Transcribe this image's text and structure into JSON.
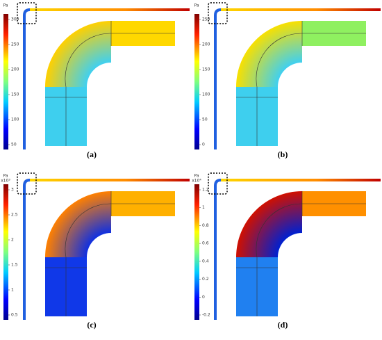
{
  "panels": [
    {
      "label": "(a)",
      "unit": "Pa",
      "ticks": [
        "300",
        "250",
        "200",
        "150",
        "100",
        "50"
      ]
    },
    {
      "label": "(b)",
      "unit": "Pa",
      "ticks": [
        "250",
        "200",
        "150",
        "100",
        "50",
        "0"
      ]
    },
    {
      "label": "(c)",
      "unit": "Pa",
      "scale": "x10³",
      "ticks": [
        "3",
        "2.5",
        "2",
        "1.5",
        "1",
        "0.5"
      ]
    },
    {
      "label": "(d)",
      "unit": "Pa",
      "scale": "x10⁴",
      "ticks": [
        "1.2",
        "1",
        "0.8",
        "0.6",
        "0.4",
        "0.2",
        "0",
        "-0.2"
      ]
    }
  ]
}
